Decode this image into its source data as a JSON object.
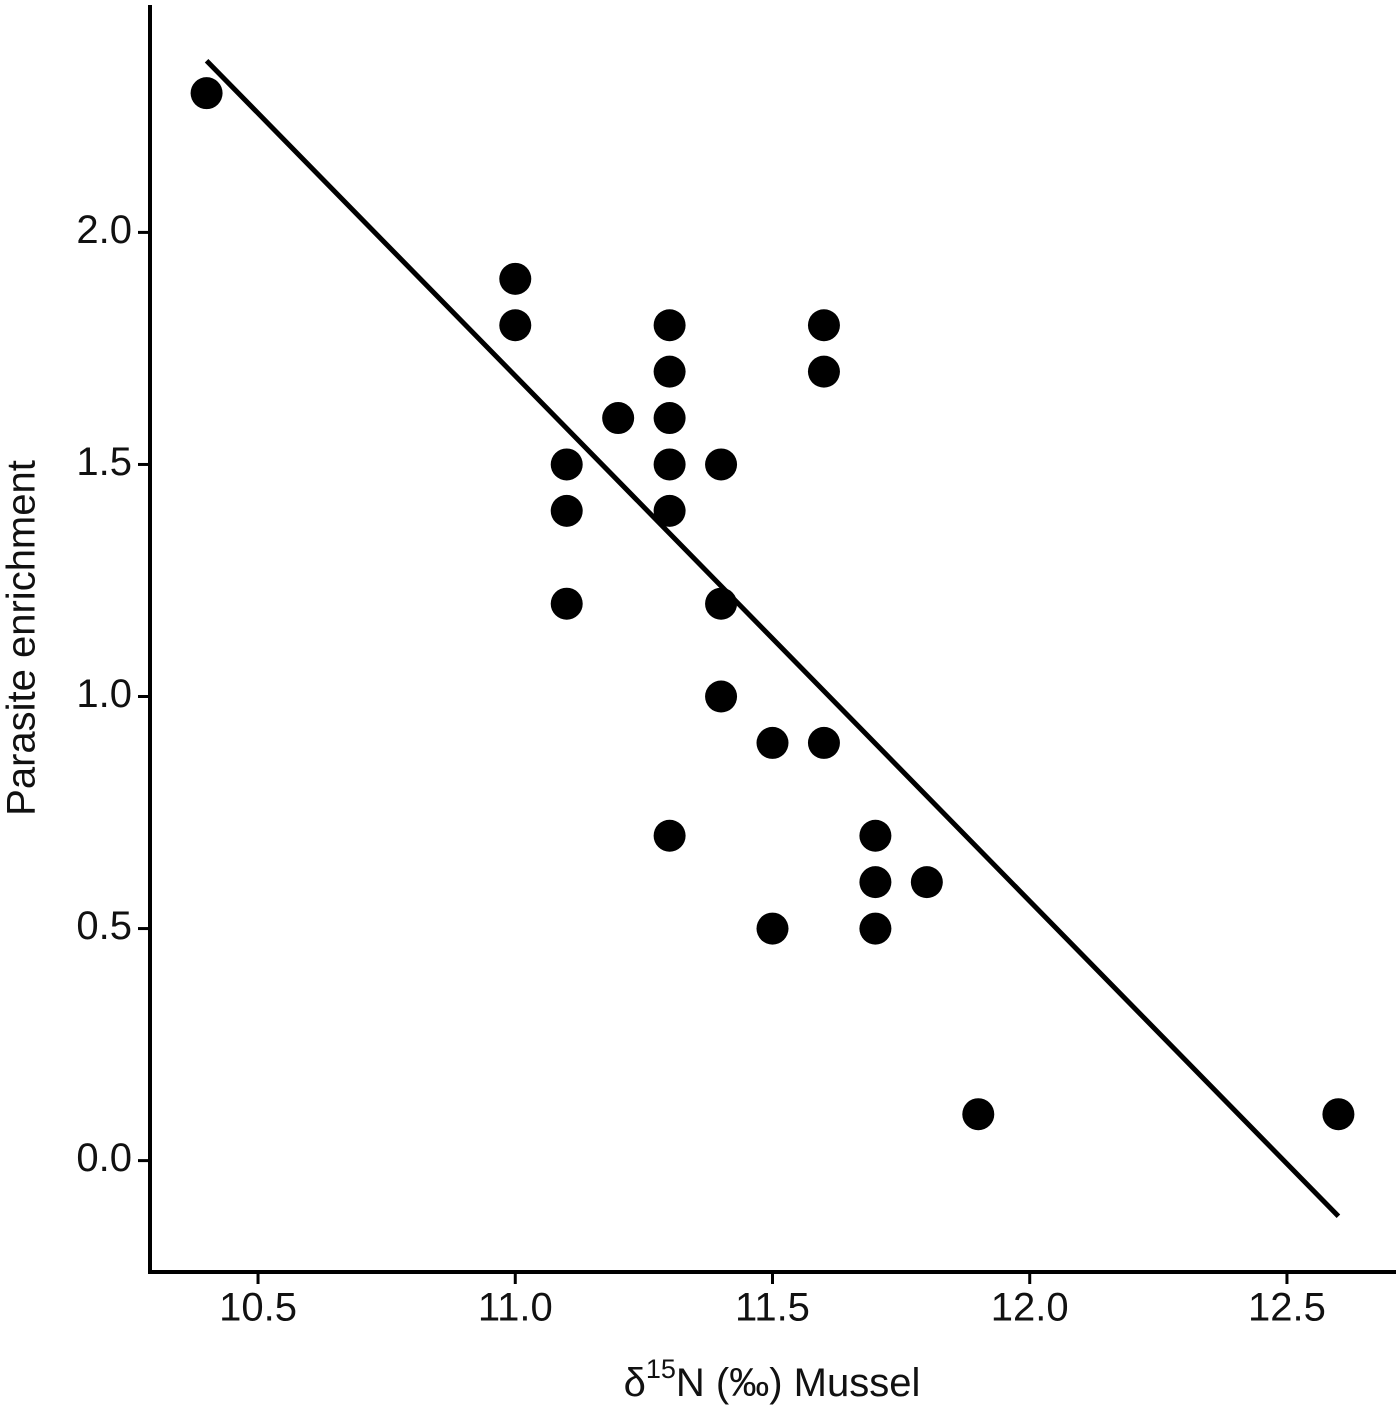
{
  "chart_data": {
    "type": "scatter",
    "x_label": {
      "prefix": "δ",
      "sup": "15",
      "suffix": "N (‰) Mussel"
    },
    "y_label": "Parasite enrichment",
    "color": "#000000",
    "x": [
      10.4,
      11.0,
      11.0,
      11.1,
      11.1,
      11.1,
      11.2,
      11.3,
      11.3,
      11.3,
      11.3,
      11.3,
      11.3,
      11.4,
      11.4,
      11.4,
      11.5,
      11.5,
      11.6,
      11.6,
      11.6,
      11.7,
      11.7,
      11.7,
      11.8,
      11.9,
      12.6
    ],
    "values": [
      2.3,
      1.9,
      1.8,
      1.5,
      1.4,
      1.2,
      1.6,
      1.8,
      1.7,
      1.6,
      1.5,
      1.4,
      0.7,
      1.5,
      1.2,
      1.0,
      0.9,
      0.5,
      1.8,
      1.7,
      0.9,
      0.7,
      0.6,
      0.5,
      0.6,
      0.1,
      0.1
    ],
    "fit": {
      "x": [
        10.4,
        12.6
      ],
      "y": [
        2.37,
        -0.12
      ]
    },
    "xlim": [
      10.29,
      12.71
    ],
    "ylim": [
      -0.24,
      2.49
    ],
    "xticks": [
      10.5,
      {
        "value": 11,
        "label": "11.0"
      },
      11.5,
      {
        "value": 12,
        "label": "12.0"
      },
      12.5
    ],
    "yticks": [
      {
        "value": 0,
        "label": "0.0"
      },
      0.5,
      {
        "value": 1,
        "label": "1.0"
      },
      1.5,
      {
        "value": 2,
        "label": "2.0"
      }
    ]
  }
}
